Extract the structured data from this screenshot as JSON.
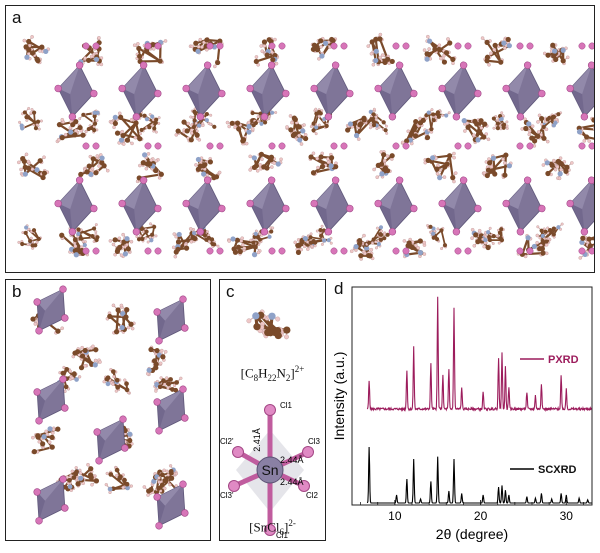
{
  "panels": {
    "a": {
      "letter": "a"
    },
    "b": {
      "letter": "b"
    },
    "c": {
      "letter": "c",
      "cation": {
        "base": "[C",
        "sub1": "8",
        "mid1": "H",
        "sub2": "22",
        "mid2": "N",
        "sub3": "2",
        "end": "]",
        "charge": "2+"
      },
      "anion": {
        "base": "[SnCl",
        "sub1": "6",
        "end": "]",
        "charge": "2-"
      },
      "atoms": {
        "center": "Sn",
        "cl1": "Cl1",
        "cl1p": "Cl1'",
        "cl2": "Cl2",
        "cl2p": "Cl2'",
        "cl3": "Cl3",
        "cl3p": "Cl3'"
      },
      "bonds": {
        "b1": "2.41Å",
        "b2": "2.44Å",
        "b3": "2.44Å"
      }
    },
    "d": {
      "letter": "d"
    }
  },
  "colors": {
    "octahedron": "#7f7598",
    "chlorine": "#d775b8",
    "carbon": "#7a4a2a",
    "nitrogen": "#8fa2c8",
    "hydrogen": "#efc7c7",
    "pxrd": "#9c1c5c",
    "scxrd": "#000000"
  },
  "chart_data": {
    "type": "line",
    "xlabel": "2θ (degree)",
    "ylabel": "Intensity (a.u.)",
    "xlim": [
      5,
      33
    ],
    "xticks": [
      10,
      20,
      30
    ],
    "series": [
      {
        "name": "PXRD",
        "peaks": [
          [
            7.0,
            0.25
          ],
          [
            11.4,
            0.35
          ],
          [
            12.2,
            0.55
          ],
          [
            14.2,
            0.4
          ],
          [
            15.0,
            1.0
          ],
          [
            15.6,
            0.3
          ],
          [
            16.3,
            0.35
          ],
          [
            16.9,
            0.9
          ],
          [
            17.8,
            0.2
          ],
          [
            20.3,
            0.15
          ],
          [
            22.1,
            0.45
          ],
          [
            22.5,
            0.5
          ],
          [
            22.9,
            0.38
          ],
          [
            23.3,
            0.2
          ],
          [
            25.4,
            0.15
          ],
          [
            26.4,
            0.12
          ],
          [
            27.1,
            0.23
          ],
          [
            29.4,
            0.3
          ],
          [
            30.0,
            0.18
          ]
        ]
      },
      {
        "name": "SCXRD",
        "peaks": [
          [
            7.0,
            0.7
          ],
          [
            10.2,
            0.1
          ],
          [
            11.4,
            0.3
          ],
          [
            12.2,
            0.55
          ],
          [
            13.0,
            0.05
          ],
          [
            14.2,
            0.27
          ],
          [
            15.0,
            0.58
          ],
          [
            16.3,
            0.15
          ],
          [
            16.9,
            0.55
          ],
          [
            17.8,
            0.12
          ],
          [
            20.3,
            0.1
          ],
          [
            22.1,
            0.2
          ],
          [
            22.5,
            0.22
          ],
          [
            22.9,
            0.16
          ],
          [
            23.3,
            0.1
          ],
          [
            25.4,
            0.08
          ],
          [
            26.4,
            0.06
          ],
          [
            27.1,
            0.12
          ],
          [
            28.3,
            0.05
          ],
          [
            29.4,
            0.12
          ],
          [
            30.0,
            0.1
          ],
          [
            31.5,
            0.06
          ],
          [
            32.5,
            0.04
          ]
        ]
      }
    ]
  }
}
